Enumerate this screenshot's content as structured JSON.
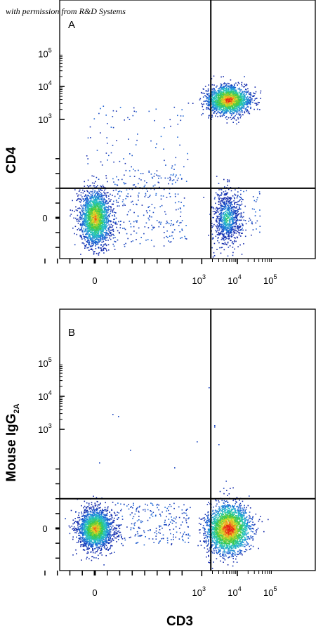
{
  "credit": "with permission from R&D Systems",
  "x_axis_title": "CD3",
  "chart_data": [
    {
      "type": "scatter",
      "panel": "A",
      "ylabel": "CD4",
      "xlabel": "CD3",
      "x_scale": "biexponential",
      "y_scale": "biexponential",
      "x_ticks": [
        {
          "base": "0",
          "exp": ""
        },
        {
          "base": "10",
          "exp": "3"
        },
        {
          "base": "10",
          "exp": "4"
        },
        {
          "base": "10",
          "exp": "5"
        }
      ],
      "y_ticks": [
        {
          "base": "0",
          "exp": ""
        },
        {
          "base": "10",
          "exp": "3"
        },
        {
          "base": "10",
          "exp": "4"
        },
        {
          "base": "10",
          "exp": "5"
        }
      ],
      "quadrant_gate": {
        "x": 1800,
        "y": 300
      },
      "populations": [
        {
          "name": "CD3- CD4-",
          "x_center": 0,
          "y_center": 0,
          "density": "high"
        },
        {
          "name": "CD3+ CD4+",
          "x_center": 5500,
          "y_center": 4000,
          "density": "high"
        },
        {
          "name": "CD3+ CD4-",
          "x_center": 5000,
          "y_center": 0,
          "density": "medium"
        }
      ]
    },
    {
      "type": "scatter",
      "panel": "B",
      "ylabel": "Mouse IgG",
      "ylabel_sub": "2A",
      "xlabel": "CD3",
      "x_scale": "biexponential",
      "y_scale": "biexponential",
      "x_ticks": [
        {
          "base": "0",
          "exp": ""
        },
        {
          "base": "10",
          "exp": "3"
        },
        {
          "base": "10",
          "exp": "4"
        },
        {
          "base": "10",
          "exp": "5"
        }
      ],
      "y_ticks": [
        {
          "base": "0",
          "exp": ""
        },
        {
          "base": "10",
          "exp": "3"
        },
        {
          "base": "10",
          "exp": "4"
        },
        {
          "base": "10",
          "exp": "5"
        }
      ],
      "quadrant_gate": {
        "x": 1800,
        "y": 300
      },
      "populations": [
        {
          "name": "CD3- isotype-",
          "x_center": 0,
          "y_center": 0,
          "density": "high"
        },
        {
          "name": "CD3+ isotype-",
          "x_center": 5500,
          "y_center": 0,
          "density": "high"
        }
      ]
    }
  ]
}
